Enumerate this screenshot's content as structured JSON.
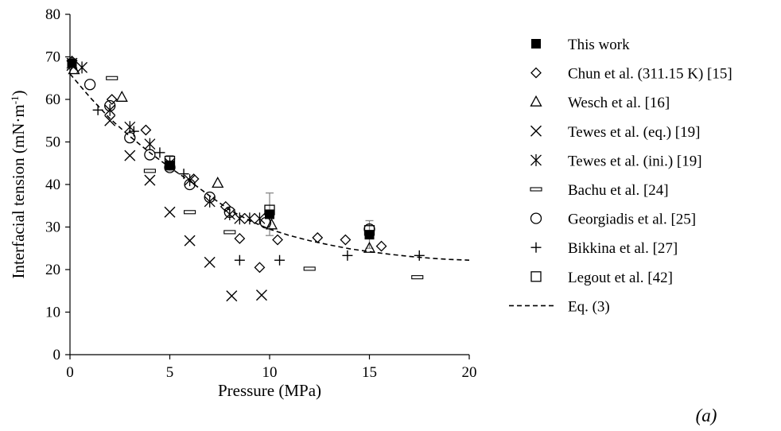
{
  "chart_data": {
    "type": "scatter",
    "xlabel": "Pressure (MPa)",
    "ylabel": "Interfacial tension (mN·m",
    "ylabel_sup": "-1",
    "ylabel_tail": ")",
    "xlim": [
      0,
      20
    ],
    "ylim": [
      0,
      80
    ],
    "xticks": [
      0,
      5,
      10,
      15,
      20
    ],
    "yticks": [
      0,
      10,
      20,
      30,
      40,
      50,
      60,
      70,
      80
    ],
    "grid": false,
    "legend_position": "right",
    "panel_label": "(a)",
    "series": [
      {
        "name": "This work",
        "marker": "filled-square",
        "points": [
          [
            0.1,
            68.5
          ],
          [
            5,
            44.5
          ],
          [
            10,
            33.0
          ],
          [
            15,
            28.2
          ]
        ],
        "error_bars": [
          [
            10,
            28.0,
            38.0
          ],
          [
            15,
            25.0,
            31.5
          ],
          [
            5,
            43.2,
            46.8
          ]
        ]
      },
      {
        "name": "Chun et al. (311.15 K) [15]",
        "marker": "diamond",
        "points": [
          [
            0.1,
            69.0
          ],
          [
            2.1,
            60.0
          ],
          [
            3.8,
            52.8
          ],
          [
            6.2,
            41.3
          ],
          [
            7.8,
            34.8
          ],
          [
            8.5,
            27.3
          ],
          [
            9.5,
            20.5
          ],
          [
            10.4,
            27.0
          ],
          [
            12.4,
            27.5
          ],
          [
            13.8,
            27.0
          ],
          [
            15.6,
            25.5
          ]
        ]
      },
      {
        "name": "Wesch et al. [16]",
        "marker": "triangle",
        "points": [
          [
            0.2,
            67.0
          ],
          [
            2.6,
            60.5
          ],
          [
            7.4,
            40.3
          ],
          [
            10.1,
            30.5
          ],
          [
            15.0,
            25.0
          ]
        ]
      },
      {
        "name": "Tewes et al. (eq.) [19]",
        "marker": "x",
        "points": [
          [
            0.1,
            68.0
          ],
          [
            2.0,
            55.0
          ],
          [
            3.0,
            46.8
          ],
          [
            4.0,
            41.0
          ],
          [
            5.0,
            33.5
          ],
          [
            6.0,
            26.8
          ],
          [
            7.0,
            21.7
          ],
          [
            8.1,
            13.8
          ],
          [
            9.6,
            14.0
          ]
        ]
      },
      {
        "name": "Tewes et al. (ini.) [19]",
        "marker": "asterisk",
        "points": [
          [
            0.1,
            68.5
          ],
          [
            0.6,
            67.5
          ],
          [
            2.0,
            57.5
          ],
          [
            3.0,
            53.5
          ],
          [
            4.0,
            49.5
          ],
          [
            5.0,
            45.0
          ],
          [
            6.0,
            41.0
          ],
          [
            7.0,
            36.0
          ],
          [
            8.0,
            33.0
          ],
          [
            8.5,
            32.0
          ],
          [
            9.0,
            32.0
          ],
          [
            9.5,
            32.0
          ]
        ]
      },
      {
        "name": "Bachu et al. [24]",
        "marker": "dash",
        "points": [
          [
            2.1,
            65.0
          ],
          [
            4.0,
            43.2
          ],
          [
            6.0,
            33.5
          ],
          [
            8.0,
            28.8
          ],
          [
            12.0,
            20.2
          ],
          [
            17.4,
            18.2
          ]
        ]
      },
      {
        "name": "Georgiadis et al. [25]",
        "marker": "circle",
        "points": [
          [
            1.0,
            63.5
          ],
          [
            2.0,
            58.5
          ],
          [
            3.0,
            51.0
          ],
          [
            4.0,
            47.0
          ],
          [
            5.0,
            44.0
          ],
          [
            6.0,
            40.0
          ],
          [
            7.0,
            37.0
          ],
          [
            8.0,
            33.5
          ],
          [
            9.8,
            31.0
          ],
          [
            15.0,
            29.5
          ]
        ]
      },
      {
        "name": "Bikkina et al. [27]",
        "marker": "plus",
        "points": [
          [
            1.4,
            57.5
          ],
          [
            3.2,
            52.5
          ],
          [
            4.5,
            47.5
          ],
          [
            5.7,
            42.5
          ],
          [
            8.5,
            22.2
          ],
          [
            10.5,
            22.2
          ],
          [
            13.9,
            23.3
          ],
          [
            17.5,
            23.3
          ]
        ]
      },
      {
        "name": "Legout et al. [42]",
        "marker": "open-square",
        "points": [
          [
            5.0,
            45.5
          ],
          [
            10.0,
            34.0
          ],
          [
            15.0,
            29.2
          ]
        ]
      },
      {
        "name": "Eq. (3)",
        "marker": "dashed-line",
        "points": [
          [
            0,
            66.0
          ],
          [
            1,
            60.5
          ],
          [
            2,
            55.5
          ],
          [
            3,
            51.3
          ],
          [
            4,
            47.5
          ],
          [
            5,
            44.0
          ],
          [
            6,
            40.8
          ],
          [
            7,
            37.3
          ],
          [
            8,
            34.0
          ],
          [
            9,
            31.5
          ],
          [
            10,
            29.5
          ],
          [
            11,
            28.0
          ],
          [
            12,
            26.8
          ],
          [
            13,
            25.8
          ],
          [
            14,
            24.9
          ],
          [
            15,
            24.2
          ],
          [
            16,
            23.6
          ],
          [
            17,
            23.1
          ],
          [
            18,
            22.7
          ],
          [
            19,
            22.4
          ],
          [
            20,
            22.2
          ]
        ]
      }
    ]
  }
}
